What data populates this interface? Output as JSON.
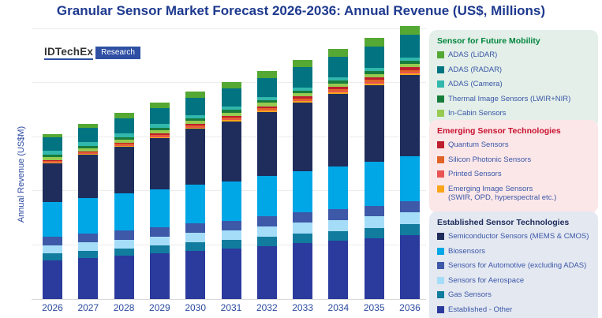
{
  "title": "Granular Sensor Market Forecast 2026-2036: Annual Revenue (US$, Millions)",
  "logo": {
    "brand": "IDTechEx",
    "badge": "Research"
  },
  "y_axis_label": "Annual Revenue (US$M)",
  "colors": {
    "title_text": "#1e3a8f",
    "axis_text": "#2c4aa0",
    "legend_text": "#3a57a7",
    "gridline": "#ececec",
    "axis_line": "#d9d9d9",
    "logo_blue": "#2e4fa3"
  },
  "legend_groups": [
    {
      "header": "Sensor for Future Mobility",
      "header_color": "#00843d",
      "bg": "#e3efe8",
      "items": [
        {
          "label": "ADAS (LiDAR)",
          "color": "#54a833"
        },
        {
          "label": "ADAS (RADAR)",
          "color": "#027481"
        },
        {
          "label": "ADAS (Camera)",
          "color": "#31b7ac"
        },
        {
          "label": "Thermal Image Sensors (LWIR+NIR)",
          "color": "#187d3c"
        },
        {
          "label": "In-Cabin Sensors",
          "color": "#97ca50"
        }
      ]
    },
    {
      "header": "Emerging Sensor Technologies",
      "header_color": "#c8102e",
      "bg": "#fbe7e8",
      "items": [
        {
          "label": "Quantum Sensors",
          "color": "#be1e2d"
        },
        {
          "label": "Silicon Photonic Sensors",
          "color": "#e06427"
        },
        {
          "label": "Printed Sensors",
          "color": "#ea5455"
        },
        {
          "label": "Emerging Image Sensors",
          "label2": "(SWIR, OPD, hyperspectral etc.)",
          "color": "#f9a51a"
        }
      ]
    },
    {
      "header": "Established Sensor Technologies",
      "header_color": "#1b2a5a",
      "bg": "#e4e8f1",
      "items": [
        {
          "label": "Semiconductor Sensors (MEMS & CMOS)",
          "color": "#1f2d5c"
        },
        {
          "label": "Biosensors",
          "color": "#00a7e6"
        },
        {
          "label": "Sensors for Automotive (excluding ADAS)",
          "color": "#3d59a8"
        },
        {
          "label": "Sensors for Aerospace",
          "color": "#a5ddf9"
        },
        {
          "label": "Gas Sensors",
          "color": "#117c9e"
        },
        {
          "label": "Established - Other",
          "color": "#2b3a9d"
        }
      ]
    }
  ],
  "chart_data": {
    "type": "bar",
    "stacked": true,
    "title": "Granular Sensor Market Forecast 2026-2036: Annual Revenue (US$, Millions)",
    "xlabel": "",
    "ylabel": "Annual Revenue (US$M)",
    "categories": [
      "2026",
      "2027",
      "2028",
      "2029",
      "2030",
      "2031",
      "2032",
      "2033",
      "2034",
      "2035",
      "2036"
    ],
    "y_axis": {
      "tick_labels_visible": false,
      "gridline_count": 5,
      "value_note": "Y axis is unlabeled in the source; values are estimated in index units where one gridline interval = 100.",
      "ylim": [
        0,
        510
      ]
    },
    "legend_position": "right",
    "grid": true,
    "series_order": "bottom-to-top",
    "series": [
      {
        "name": "Established - Other",
        "group": "Established Sensor Technologies",
        "color": "#2b3a9d",
        "values": [
          72,
          76,
          80,
          84,
          89,
          93,
          98,
          103,
          108,
          113,
          118
        ]
      },
      {
        "name": "Gas Sensors",
        "group": "Established Sensor Technologies",
        "color": "#117c9e",
        "values": [
          12,
          13,
          14,
          15,
          16,
          16,
          17,
          18,
          18,
          19,
          20
        ]
      },
      {
        "name": "Sensors for Aerospace",
        "group": "Established Sensor Technologies",
        "color": "#a5ddf9",
        "values": [
          15,
          16,
          16,
          17,
          17,
          18,
          19,
          20,
          20,
          21,
          22
        ]
      },
      {
        "name": "Sensors for Automotive (excluding ADAS)",
        "group": "Established Sensor Technologies",
        "color": "#3d59a8",
        "values": [
          16,
          16,
          17,
          17,
          18,
          18,
          19,
          19,
          20,
          20,
          21
        ]
      },
      {
        "name": "Biosensors",
        "group": "Established Sensor Technologies",
        "color": "#00a7e6",
        "values": [
          64,
          66,
          68,
          70,
          72,
          73,
          75,
          77,
          79,
          81,
          83
        ]
      },
      {
        "name": "Semiconductor Sensors (MEMS & CMOS)",
        "group": "Established Sensor Technologies",
        "color": "#1f2d5c",
        "values": [
          72,
          80,
          87,
          95,
          103,
          110,
          118,
          126,
          134,
          142,
          150
        ]
      },
      {
        "name": "Emerging Image Sensors (SWIR, OPD, hyperspectral etc.)",
        "group": "Emerging Sensor Technologies",
        "color": "#f9a51a",
        "values": [
          2,
          2,
          2,
          2,
          2,
          3,
          3,
          3,
          3,
          3,
          3
        ]
      },
      {
        "name": "Printed Sensors",
        "group": "Emerging Sensor Technologies",
        "color": "#ea5455",
        "values": [
          1,
          1,
          1,
          2,
          2,
          2,
          2,
          2,
          3,
          3,
          3
        ]
      },
      {
        "name": "Silicon Photonic Sensors",
        "group": "Emerging Sensor Technologies",
        "color": "#e06427",
        "values": [
          2,
          2,
          2,
          2,
          3,
          3,
          3,
          3,
          4,
          4,
          4
        ]
      },
      {
        "name": "Quantum Sensors",
        "group": "Emerging Sensor Technologies",
        "color": "#be1e2d",
        "values": [
          1,
          1,
          2,
          2,
          2,
          3,
          3,
          4,
          4,
          4,
          5
        ]
      },
      {
        "name": "In-Cabin Sensors",
        "group": "Sensor for Future Mobility",
        "color": "#97ca50",
        "values": [
          6,
          6,
          6,
          6,
          6,
          6,
          6,
          6,
          6,
          6,
          6
        ]
      },
      {
        "name": "Thermal Image Sensors (LWIR+NIR)",
        "group": "Sensor for Future Mobility",
        "color": "#187d3c",
        "values": [
          4,
          4,
          4,
          5,
          5,
          5,
          5,
          5,
          6,
          6,
          6
        ]
      },
      {
        "name": "ADAS (Camera)",
        "group": "Sensor for Future Mobility",
        "color": "#31b7ac",
        "values": [
          7,
          7,
          7,
          7,
          6,
          6,
          6,
          6,
          6,
          6,
          6
        ]
      },
      {
        "name": "ADAS (RADAR)",
        "group": "Sensor for Future Mobility",
        "color": "#027481",
        "values": [
          25,
          27,
          29,
          30,
          32,
          34,
          35,
          37,
          38,
          40,
          42
        ]
      },
      {
        "name": "ADAS (LiDAR)",
        "group": "Sensor for Future Mobility",
        "color": "#54a833",
        "values": [
          7,
          8,
          9,
          10,
          11,
          12,
          13,
          13,
          14,
          15,
          16
        ]
      }
    ]
  }
}
